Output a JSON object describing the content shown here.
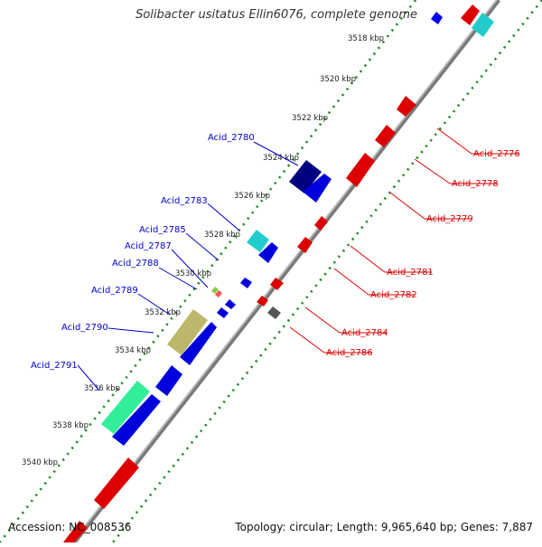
{
  "title": "Solibacter usitatus Ellin6076, complete genome",
  "footer": {
    "accession": "Accession: NC_008536",
    "summary": "Topology: circular; Length: 9,965,640 bp; Genes: 7,887"
  },
  "colors": {
    "backbone": "#888888",
    "tick": "#228b22",
    "forward_gene": "#0000ee",
    "reverse_gene": "#ee0000",
    "forward_label": "#0000cc",
    "reverse_label": "#dd0000",
    "scale_label": "#222222"
  },
  "scale_ticks": [
    "3518 kbp",
    "3520 kbp",
    "3522 kbp",
    "3524 kbp",
    "3526 kbp",
    "3528 kbp",
    "3530 kbp",
    "3532 kbp",
    "3534 kbp",
    "3536 kbp",
    "3538 kbp",
    "3540 kbp"
  ],
  "forward_labels": [
    "Acid_2780",
    "Acid_2783",
    "Acid_2785",
    "Acid_2787",
    "Acid_2788",
    "Acid_2789",
    "Acid_2790",
    "Acid_2791"
  ],
  "reverse_labels": [
    "Acid_2776",
    "Acid_2778",
    "Acid_2779",
    "Acid_2781",
    "Acid_2782",
    "Acid_2784",
    "Acid_2786"
  ]
}
